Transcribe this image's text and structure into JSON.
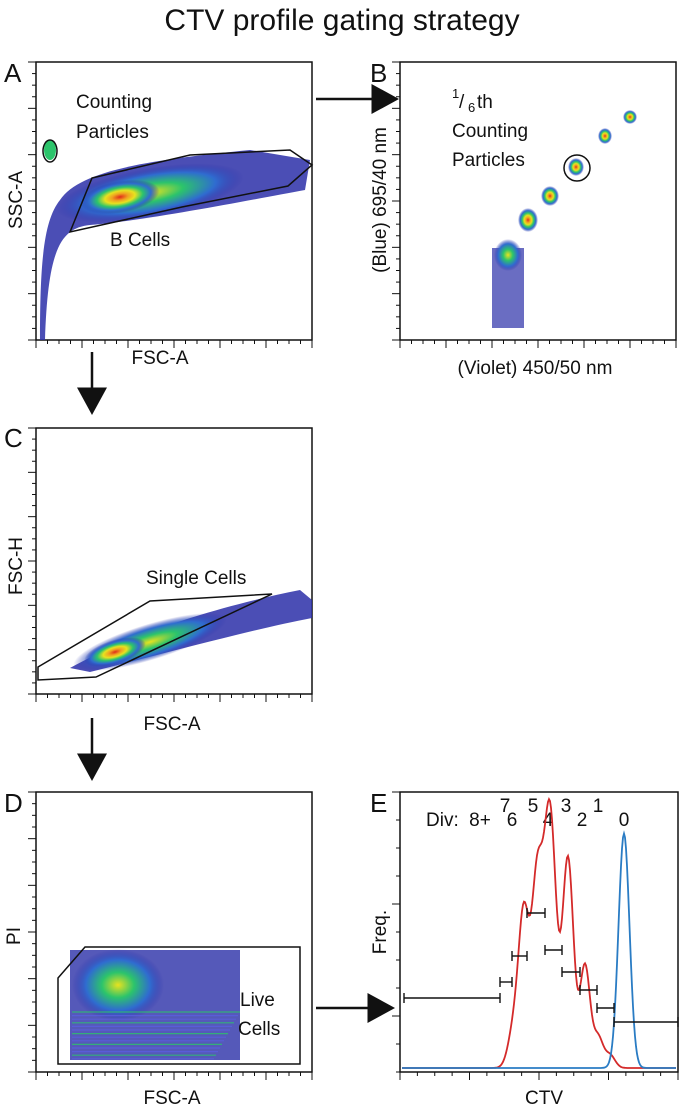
{
  "title": "CTV profile gating strategy",
  "panels": {
    "A": {
      "letter": "A",
      "xlabel": "FSC-A",
      "ylabel": "SSC-A",
      "gate1": "Counting",
      "gate1b": "Particles",
      "gate2": "B Cells"
    },
    "B": {
      "letter": "B",
      "xlabel": "(Violet) 450/50 nm",
      "ylabel": "(Blue) 695/40 nm",
      "sup": "1",
      "sub": "6",
      "th": "th",
      "l2": "Counting",
      "l3": "Particles"
    },
    "C": {
      "letter": "C",
      "xlabel": "FSC-A",
      "ylabel": "FSC-H",
      "gate": "Single Cells"
    },
    "D": {
      "letter": "D",
      "xlabel": "FSC-A",
      "ylabel": "PI",
      "gate1": "Live",
      "gate2": "Cells"
    },
    "E": {
      "letter": "E",
      "xlabel": "CTV",
      "ylabel": "Freq.",
      "div": "Div:"
    }
  },
  "chart_data": [
    {
      "panel": "E",
      "type": "line",
      "division_labels": [
        "8+",
        "7",
        "6",
        "5",
        "4",
        "3",
        "2",
        "1",
        "0"
      ],
      "series": [
        {
          "color": "#d42a2a",
          "peaks": [
            {
              "division": 8,
              "rel_height": 0.18
            },
            {
              "division": 7,
              "rel_height": 0.55
            },
            {
              "division": 6,
              "rel_height": 0.72
            },
            {
              "division": 5,
              "rel_height": 1.0
            },
            {
              "division": 4,
              "rel_height": 0.82
            },
            {
              "division": 3,
              "rel_height": 0.4
            },
            {
              "division": 2,
              "rel_height": 0.12
            },
            {
              "division": 1,
              "rel_height": 0.05
            }
          ]
        },
        {
          "color": "#2a7cc4",
          "peaks": [
            {
              "division": 0,
              "rel_height": 0.92
            }
          ]
        }
      ]
    }
  ],
  "colors": {
    "density_low": "#2b2fa8",
    "density_mid": "#2cc46b",
    "density_high": "#e8e21f",
    "density_peak": "#e02a1a"
  }
}
